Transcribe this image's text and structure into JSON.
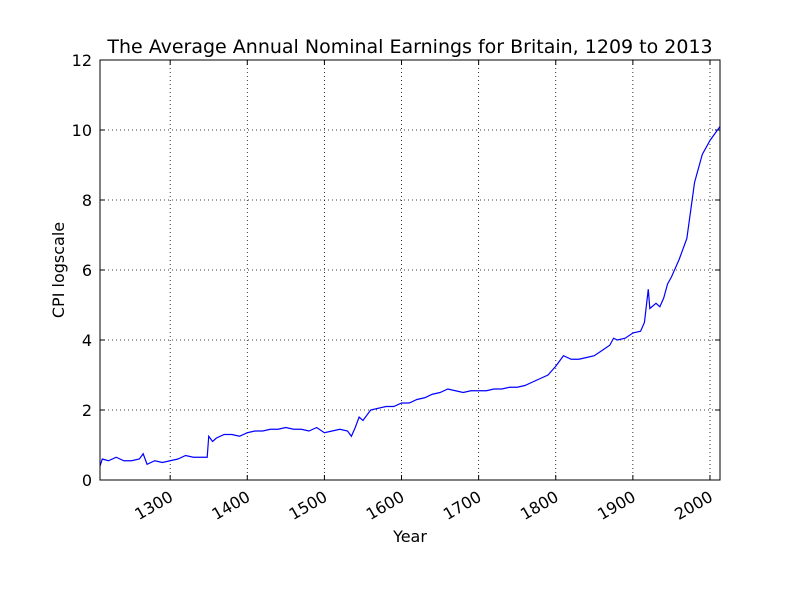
{
  "chart_data": {
    "type": "line",
    "title": "The Average Annual Nominal Earnings for Britain, 1209 to 2013",
    "x_label": "Year",
    "y_label": "CPI logscale",
    "xlim": [
      1209,
      2013
    ],
    "ylim": [
      0,
      12
    ],
    "xticks": [
      1300,
      1400,
      1500,
      1600,
      1700,
      1800,
      1900,
      2000
    ],
    "yticks": [
      0,
      2,
      4,
      6,
      8,
      10,
      12
    ],
    "grid": true,
    "x": [
      1209,
      1212,
      1220,
      1230,
      1240,
      1250,
      1260,
      1265,
      1270,
      1280,
      1290,
      1300,
      1310,
      1320,
      1330,
      1340,
      1348,
      1350,
      1355,
      1360,
      1370,
      1380,
      1390,
      1400,
      1410,
      1420,
      1430,
      1440,
      1450,
      1460,
      1470,
      1480,
      1490,
      1500,
      1510,
      1520,
      1530,
      1535,
      1540,
      1545,
      1550,
      1560,
      1570,
      1580,
      1590,
      1600,
      1610,
      1620,
      1630,
      1640,
      1650,
      1660,
      1670,
      1680,
      1690,
      1700,
      1710,
      1720,
      1730,
      1740,
      1750,
      1760,
      1770,
      1780,
      1790,
      1800,
      1810,
      1820,
      1830,
      1840,
      1850,
      1860,
      1870,
      1875,
      1880,
      1890,
      1900,
      1910,
      1915,
      1920,
      1922,
      1930,
      1935,
      1940,
      1945,
      1950,
      1960,
      1970,
      1975,
      1980,
      1990,
      2000,
      2013
    ],
    "series": [
      {
        "name": "CPI",
        "color": "#0000ff",
        "values": [
          0.4,
          0.6,
          0.55,
          0.65,
          0.55,
          0.55,
          0.6,
          0.75,
          0.45,
          0.55,
          0.5,
          0.55,
          0.6,
          0.7,
          0.65,
          0.65,
          0.65,
          1.25,
          1.1,
          1.2,
          1.3,
          1.3,
          1.25,
          1.35,
          1.4,
          1.4,
          1.45,
          1.45,
          1.5,
          1.45,
          1.45,
          1.4,
          1.5,
          1.35,
          1.4,
          1.45,
          1.4,
          1.25,
          1.5,
          1.8,
          1.7,
          2.0,
          2.05,
          2.1,
          2.1,
          2.2,
          2.2,
          2.3,
          2.35,
          2.45,
          2.5,
          2.6,
          2.55,
          2.5,
          2.55,
          2.55,
          2.55,
          2.6,
          2.6,
          2.65,
          2.65,
          2.7,
          2.8,
          2.9,
          3.0,
          3.25,
          3.55,
          3.45,
          3.45,
          3.5,
          3.55,
          3.7,
          3.85,
          4.05,
          4.0,
          4.05,
          4.2,
          4.25,
          4.5,
          5.45,
          4.9,
          5.05,
          4.95,
          5.2,
          5.6,
          5.8,
          6.3,
          6.9,
          7.7,
          8.5,
          9.3,
          9.7,
          10.1
        ]
      }
    ]
  }
}
